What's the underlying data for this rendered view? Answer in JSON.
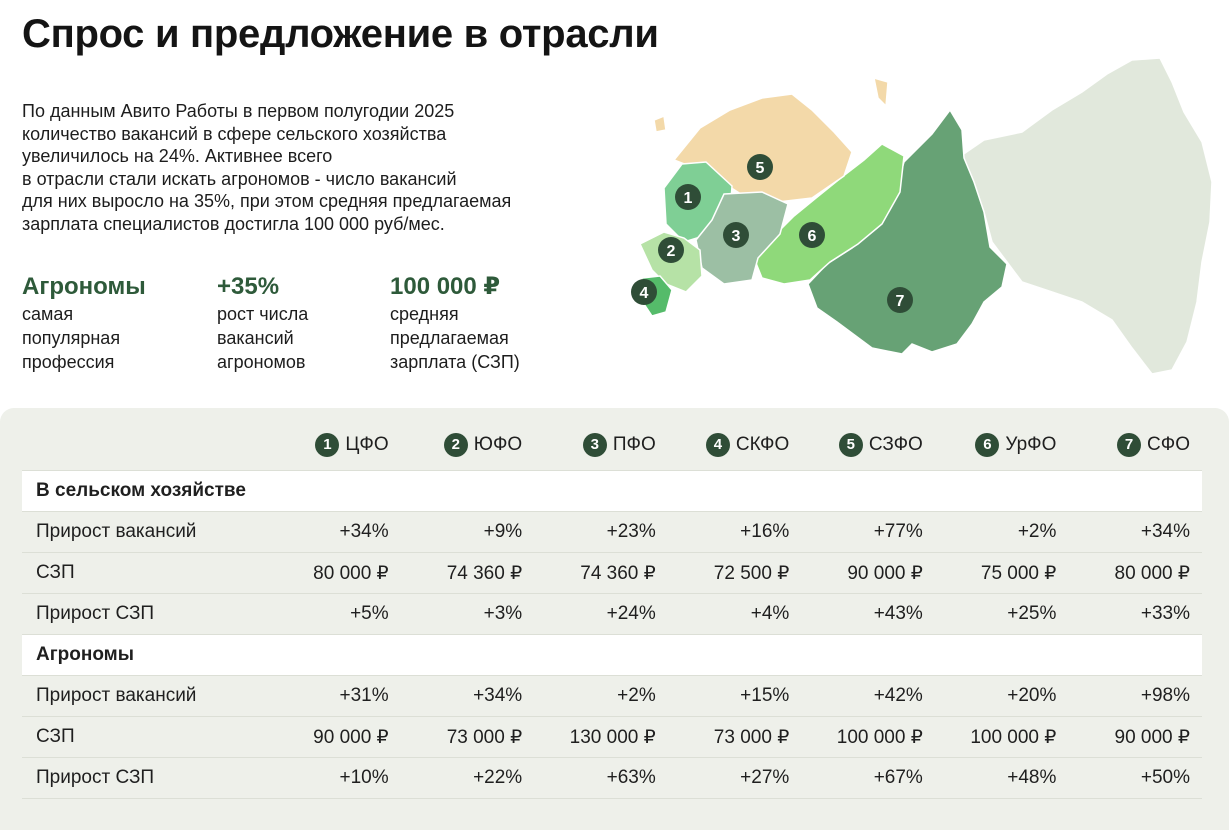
{
  "title": "Спрос и предложение в отрасли",
  "intro_lines": [
    "По данным Авито Работы в первом полугодии 2025",
    "количество вакансий в сфере сельского хозяйства",
    "увеличилось на 24%. Активнее всего",
    "в отрасли стали искать агрономов - число вакансий",
    "для них выросло на 35%, при этом средняя предлагаемая",
    "зарплата специалистов достигла 100 000 руб/мес."
  ],
  "stats": [
    {
      "value": "Агрономы",
      "label_lines": [
        "самая",
        "популярная",
        "профессия"
      ]
    },
    {
      "value": "+35%",
      "label_lines": [
        "рост числа",
        "вакансий",
        "агрономов"
      ]
    },
    {
      "value": "100 000 ₽",
      "label_lines": [
        "средняя",
        "предлагаемая",
        "зарплата (СЗП)"
      ]
    }
  ],
  "map": {
    "colors": {
      "1": "#7fcf95",
      "2": "#b6e2a6",
      "3": "#9cbfa4",
      "4": "#55bb6a",
      "5": "#f3d9a9",
      "6": "#8fd97a",
      "7": "#67a275",
      "other": "#e1e8dc"
    },
    "markers": [
      "1",
      "2",
      "3",
      "4",
      "5",
      "6",
      "7"
    ]
  },
  "table": {
    "headers": [
      {
        "num": "1",
        "region": "ЦФО"
      },
      {
        "num": "2",
        "region": "ЮФО"
      },
      {
        "num": "3",
        "region": "ПФО"
      },
      {
        "num": "4",
        "region": "СКФО"
      },
      {
        "num": "5",
        "region": "СЗФО"
      },
      {
        "num": "6",
        "region": "УрФО"
      },
      {
        "num": "7",
        "region": "СФО"
      }
    ],
    "sections": [
      {
        "title": "В сельском хозяйстве",
        "rows": [
          {
            "label": "Прирост вакансий",
            "values": [
              "+34%",
              "+9%",
              "+23%",
              "+16%",
              "+77%",
              "+2%",
              "+34%"
            ]
          },
          {
            "label": "СЗП",
            "values": [
              "80 000 ₽",
              "74 360 ₽",
              "74 360 ₽",
              "72 500 ₽",
              "90 000 ₽",
              "75 000 ₽",
              "80 000 ₽"
            ]
          },
          {
            "label": "Прирост СЗП",
            "values": [
              "+5%",
              "+3%",
              "+24%",
              "+4%",
              "+43%",
              "+25%",
              "+33%"
            ]
          }
        ]
      },
      {
        "title": "Агрономы",
        "rows": [
          {
            "label": "Прирост вакансий",
            "values": [
              "+31%",
              "+34%",
              "+2%",
              "+15%",
              "+42%",
              "+20%",
              "+98%"
            ]
          },
          {
            "label": "СЗП",
            "values": [
              "90 000 ₽",
              "73 000 ₽",
              "130 000 ₽",
              "73 000 ₽",
              "100 000 ₽",
              "100 000 ₽",
              "90 000 ₽"
            ]
          },
          {
            "label": "Прирост СЗП",
            "values": [
              "+10%",
              "+22%",
              "+63%",
              "+27%",
              "+67%",
              "+48%",
              "+50%"
            ]
          }
        ]
      }
    ]
  }
}
